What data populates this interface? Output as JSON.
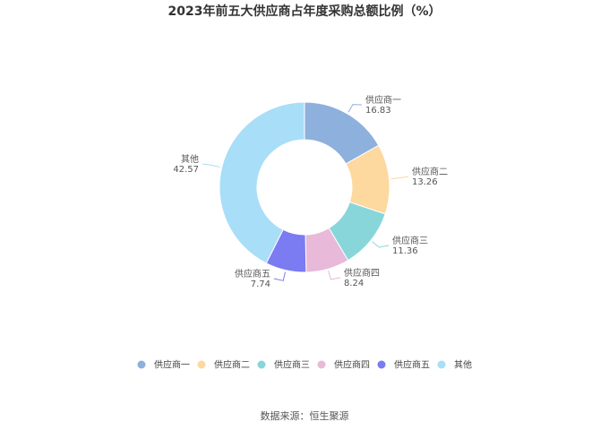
{
  "chart_data": {
    "type": "pie",
    "variant": "donut",
    "title": "2023年前五大供应商占年度采购总额比例（%）",
    "categories": [
      "供应商一",
      "供应商二",
      "供应商三",
      "供应商四",
      "供应商五",
      "其他"
    ],
    "values": [
      16.83,
      13.26,
      11.36,
      8.24,
      7.74,
      42.57
    ],
    "value_labels": [
      "16.83",
      "13.26",
      "11.36",
      "8.24",
      "7.74",
      "42.57"
    ],
    "colors": [
      "#8eb0dd",
      "#fdd89f",
      "#88d6da",
      "#e8b9d9",
      "#7b7bf2",
      "#a8def7"
    ],
    "legend_position": "bottom",
    "source": "数据来源：恒生聚源"
  }
}
